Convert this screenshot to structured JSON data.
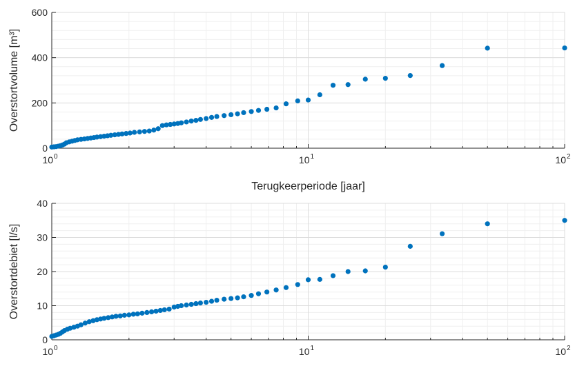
{
  "chart_data": [
    {
      "type": "scatter",
      "xscale": "log",
      "xlim": [
        1,
        100
      ],
      "ylim": [
        0,
        600
      ],
      "xlabel": "Terugkeerperiode [jaar]",
      "ylabel": "Overstortvolume [m³]",
      "xticks": [
        {
          "base": "10",
          "exp": "0",
          "value": 1
        },
        {
          "base": "10",
          "exp": "1",
          "value": 10
        },
        {
          "base": "10",
          "exp": "2",
          "value": 100
        }
      ],
      "yticks": [
        {
          "label": "0",
          "value": 0
        },
        {
          "label": "200",
          "value": 200
        },
        {
          "label": "400",
          "value": 400
        },
        {
          "label": "600",
          "value": 600
        }
      ],
      "grid": true,
      "marker_color": "#0072BD",
      "points": [
        [
          1.0,
          5
        ],
        [
          1.02,
          6
        ],
        [
          1.04,
          7
        ],
        [
          1.06,
          9
        ],
        [
          1.08,
          11
        ],
        [
          1.1,
          14
        ],
        [
          1.12,
          18
        ],
        [
          1.14,
          24
        ],
        [
          1.17,
          28
        ],
        [
          1.2,
          31
        ],
        [
          1.23,
          34
        ],
        [
          1.26,
          37
        ],
        [
          1.3,
          39
        ],
        [
          1.34,
          41
        ],
        [
          1.38,
          43
        ],
        [
          1.42,
          45
        ],
        [
          1.46,
          47
        ],
        [
          1.5,
          49
        ],
        [
          1.55,
          51
        ],
        [
          1.6,
          53
        ],
        [
          1.65,
          55
        ],
        [
          1.7,
          57
        ],
        [
          1.76,
          59
        ],
        [
          1.82,
          61
        ],
        [
          1.88,
          63
        ],
        [
          1.95,
          65
        ],
        [
          2.02,
          67
        ],
        [
          2.1,
          70
        ],
        [
          2.2,
          72
        ],
        [
          2.3,
          74
        ],
        [
          2.4,
          76
        ],
        [
          2.5,
          80
        ],
        [
          2.6,
          86
        ],
        [
          2.7,
          100
        ],
        [
          2.8,
          103
        ],
        [
          2.9,
          105
        ],
        [
          3.0,
          107
        ],
        [
          3.1,
          109
        ],
        [
          3.2,
          112
        ],
        [
          3.35,
          116
        ],
        [
          3.5,
          120
        ],
        [
          3.65,
          123
        ],
        [
          3.8,
          127
        ],
        [
          4.0,
          131
        ],
        [
          4.2,
          136
        ],
        [
          4.4,
          140
        ],
        [
          4.7,
          144
        ],
        [
          5.0,
          148
        ],
        [
          5.3,
          152
        ],
        [
          5.6,
          157
        ],
        [
          6.0,
          162
        ],
        [
          6.4,
          167
        ],
        [
          6.9,
          172
        ],
        [
          7.5,
          178
        ],
        [
          8.2,
          196
        ],
        [
          9.1,
          209
        ],
        [
          10.0,
          213
        ],
        [
          11.1,
          236
        ],
        [
          12.5,
          278
        ],
        [
          14.3,
          281
        ],
        [
          16.7,
          305
        ],
        [
          20,
          309
        ],
        [
          25,
          321
        ],
        [
          33.3,
          365
        ],
        [
          50,
          442
        ],
        [
          100,
          443
        ]
      ]
    },
    {
      "type": "scatter",
      "xscale": "log",
      "xlim": [
        1,
        100
      ],
      "ylim": [
        0,
        40
      ],
      "xlabel": "",
      "ylabel": "Overstortdebiet [l/s]",
      "xticks": [
        {
          "base": "10",
          "exp": "0",
          "value": 1
        },
        {
          "base": "10",
          "exp": "1",
          "value": 10
        },
        {
          "base": "10",
          "exp": "2",
          "value": 100
        }
      ],
      "yticks": [
        {
          "label": "0",
          "value": 0
        },
        {
          "label": "10",
          "value": 10
        },
        {
          "label": "20",
          "value": 20
        },
        {
          "label": "30",
          "value": 30
        },
        {
          "label": "40",
          "value": 40
        }
      ],
      "grid": true,
      "marker_color": "#0072BD",
      "points": [
        [
          1.0,
          1.0
        ],
        [
          1.02,
          1.2
        ],
        [
          1.04,
          1.4
        ],
        [
          1.06,
          1.6
        ],
        [
          1.08,
          1.9
        ],
        [
          1.1,
          2.3
        ],
        [
          1.12,
          2.7
        ],
        [
          1.15,
          3.1
        ],
        [
          1.18,
          3.4
        ],
        [
          1.22,
          3.7
        ],
        [
          1.26,
          4.0
        ],
        [
          1.3,
          4.4
        ],
        [
          1.35,
          4.9
        ],
        [
          1.4,
          5.3
        ],
        [
          1.45,
          5.6
        ],
        [
          1.5,
          5.9
        ],
        [
          1.55,
          6.1
        ],
        [
          1.6,
          6.3
        ],
        [
          1.66,
          6.5
        ],
        [
          1.72,
          6.7
        ],
        [
          1.78,
          6.9
        ],
        [
          1.85,
          7.0
        ],
        [
          1.92,
          7.2
        ],
        [
          2.0,
          7.3
        ],
        [
          2.08,
          7.5
        ],
        [
          2.16,
          7.6
        ],
        [
          2.25,
          7.8
        ],
        [
          2.35,
          8.0
        ],
        [
          2.45,
          8.2
        ],
        [
          2.55,
          8.4
        ],
        [
          2.65,
          8.6
        ],
        [
          2.75,
          8.8
        ],
        [
          2.87,
          9.0
        ],
        [
          3.0,
          9.6
        ],
        [
          3.1,
          9.8
        ],
        [
          3.2,
          10.0
        ],
        [
          3.35,
          10.2
        ],
        [
          3.5,
          10.4
        ],
        [
          3.65,
          10.6
        ],
        [
          3.8,
          10.8
        ],
        [
          4.0,
          11.0
        ],
        [
          4.2,
          11.3
        ],
        [
          4.4,
          11.6
        ],
        [
          4.7,
          11.9
        ],
        [
          5.0,
          12.1
        ],
        [
          5.3,
          12.3
        ],
        [
          5.6,
          12.6
        ],
        [
          6.0,
          13.0
        ],
        [
          6.4,
          13.5
        ],
        [
          6.9,
          14.0
        ],
        [
          7.5,
          14.6
        ],
        [
          8.2,
          15.3
        ],
        [
          9.1,
          16.2
        ],
        [
          10.0,
          17.6
        ],
        [
          11.1,
          17.7
        ],
        [
          12.5,
          18.8
        ],
        [
          14.3,
          20.0
        ],
        [
          16.7,
          20.2
        ],
        [
          20,
          21.3
        ],
        [
          25,
          27.4
        ],
        [
          33.3,
          31.1
        ],
        [
          50,
          34.0
        ],
        [
          100,
          35.0
        ]
      ]
    }
  ]
}
